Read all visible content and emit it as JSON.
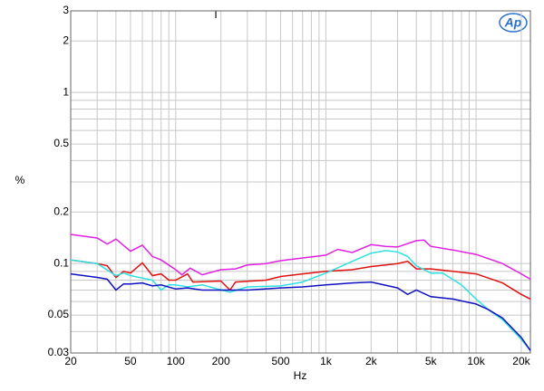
{
  "chart_data": {
    "type": "line",
    "annotation": "T",
    "logo": "Ap",
    "xlabel": "Hz",
    "ylabel": "%",
    "xscale": "log",
    "yscale": "log",
    "grid": true,
    "xlim": [
      20,
      23000
    ],
    "ylim": [
      0.03,
      3
    ],
    "xticks": [
      20,
      50,
      100,
      200,
      500,
      {
        "value": 1000,
        "label": "1k"
      },
      {
        "value": 2000,
        "label": "2k"
      },
      {
        "value": 5000,
        "label": "5k"
      },
      {
        "value": 10000,
        "label": "10k"
      },
      {
        "value": 20000,
        "label": "20k"
      }
    ],
    "x_minor_ticks": [
      30,
      40,
      60,
      70,
      80,
      90,
      300,
      400,
      600,
      700,
      800,
      900,
      3000,
      4000,
      6000,
      7000,
      8000,
      9000
    ],
    "yticks": [
      0.03,
      0.05,
      0.1,
      0.2,
      0.5,
      1,
      2,
      3
    ],
    "y_minor_ticks": [
      0.04,
      0.06,
      0.07,
      0.08,
      0.09,
      0.3,
      0.4,
      0.6,
      0.7,
      0.8,
      0.9
    ],
    "series": [
      {
        "color": "#e020e0",
        "x": [
          20,
          30,
          35,
          40,
          50,
          60,
          70,
          80,
          100,
          110,
          125,
          150,
          200,
          250,
          300,
          400,
          500,
          1000,
          1200,
          1500,
          2000,
          2500,
          3000,
          4000,
          4500,
          5000,
          7000,
          10000,
          15000,
          20000,
          23000
        ],
        "values": [
          0.148,
          0.141,
          0.13,
          0.139,
          0.118,
          0.128,
          0.11,
          0.105,
          0.092,
          0.086,
          0.094,
          0.086,
          0.092,
          0.093,
          0.098,
          0.1,
          0.104,
          0.112,
          0.121,
          0.116,
          0.129,
          0.126,
          0.125,
          0.136,
          0.137,
          0.126,
          0.12,
          0.113,
          0.1,
          0.087,
          0.081
        ]
      },
      {
        "color": "#e01010",
        "x": [
          20,
          30,
          35,
          40,
          45,
          50,
          60,
          70,
          80,
          90,
          100,
          120,
          130,
          200,
          230,
          250,
          400,
          500,
          700,
          1000,
          1500,
          2000,
          2500,
          3000,
          3500,
          4000,
          5000,
          7000,
          10000,
          15000,
          20000,
          23000
        ],
        "values": [
          0.105,
          0.1,
          0.097,
          0.083,
          0.09,
          0.088,
          0.101,
          0.085,
          0.087,
          0.08,
          0.08,
          0.087,
          0.078,
          0.079,
          0.07,
          0.078,
          0.08,
          0.084,
          0.087,
          0.09,
          0.092,
          0.096,
          0.098,
          0.1,
          0.103,
          0.093,
          0.093,
          0.09,
          0.087,
          0.077,
          0.066,
          0.062
        ]
      },
      {
        "color": "#30e0e0",
        "x": [
          20,
          30,
          40,
          45,
          50,
          70,
          80,
          90,
          100,
          120,
          150,
          230,
          300,
          500,
          700,
          1000,
          1500,
          2000,
          2500,
          3000,
          3500,
          4000,
          5000,
          6000,
          8000,
          10000,
          12000,
          15000,
          20000,
          23000
        ],
        "values": [
          0.105,
          0.1,
          0.085,
          0.088,
          0.085,
          0.08,
          0.07,
          0.075,
          0.075,
          0.073,
          0.075,
          0.068,
          0.073,
          0.074,
          0.078,
          0.088,
          0.103,
          0.115,
          0.119,
          0.117,
          0.11,
          0.097,
          0.088,
          0.088,
          0.075,
          0.062,
          0.054,
          0.047,
          0.036,
          0.031
        ]
      },
      {
        "color": "#1010c0",
        "x": [
          20,
          30,
          35,
          40,
          45,
          50,
          60,
          70,
          80,
          100,
          120,
          150,
          200,
          300,
          500,
          700,
          1000,
          1500,
          2000,
          3000,
          3500,
          4000,
          5000,
          7000,
          10000,
          12000,
          15000,
          20000,
          23000
        ],
        "values": [
          0.087,
          0.083,
          0.081,
          0.07,
          0.076,
          0.076,
          0.077,
          0.074,
          0.075,
          0.071,
          0.072,
          0.07,
          0.07,
          0.07,
          0.072,
          0.073,
          0.075,
          0.077,
          0.078,
          0.072,
          0.066,
          0.07,
          0.064,
          0.062,
          0.058,
          0.054,
          0.048,
          0.037,
          0.031
        ]
      }
    ]
  }
}
